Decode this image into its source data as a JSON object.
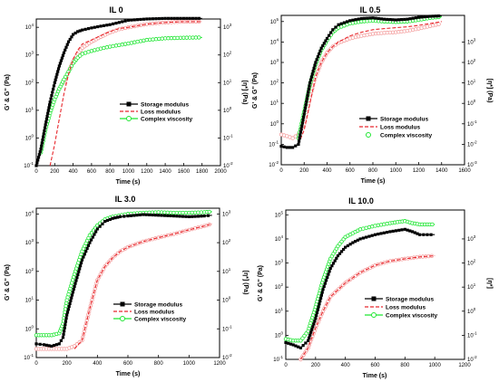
{
  "chart_data": [
    {
      "type": "line",
      "title": "IL 0",
      "xlabel": "Time (s)",
      "ylabel": "G' & G'' (Pa)",
      "y2label": "[η*] (Pa)",
      "xlim": [
        0,
        2000
      ],
      "xticks": [
        0,
        200,
        400,
        600,
        800,
        1000,
        1200,
        1400,
        1600,
        1800,
        2000
      ],
      "yscale": "log",
      "ylim_exp": [
        -1,
        4.3
      ],
      "ytick_exps": [
        -1,
        0,
        1,
        2,
        3,
        4
      ],
      "y2lim_exp": [
        -2,
        3.3
      ],
      "y2tick_exps": [
        -2,
        -1,
        0,
        1,
        2,
        3
      ],
      "legend_position": "center-right",
      "legend": [
        "Storage modulus",
        "Loss modulus",
        "Complex viscosity"
      ],
      "series": [
        {
          "name": "Storage modulus",
          "color": "#000000",
          "marker": "square-filled",
          "style": "solid",
          "x": [
            0,
            50,
            100,
            150,
            200,
            250,
            300,
            350,
            400,
            450,
            500,
            600,
            700,
            800,
            900,
            1000,
            1200,
            1400,
            1600,
            1800
          ],
          "y": [
            0.1,
            0.4,
            3,
            20,
            100,
            400,
            1200,
            3000,
            5500,
            7000,
            8000,
            9500,
            11000,
            12500,
            15000,
            18000,
            20000,
            21000,
            21000,
            21000
          ]
        },
        {
          "name": "Loss modulus",
          "color": "#e8282d",
          "marker": "none",
          "style": "dashed",
          "x": [
            150,
            200,
            250,
            300,
            350,
            400,
            450,
            500,
            600,
            700,
            800,
            900,
            1000,
            1200,
            1400,
            1600,
            1800
          ],
          "y": [
            0.1,
            0.6,
            5,
            40,
            200,
            700,
            1500,
            2500,
            3500,
            5000,
            7000,
            9000,
            10000,
            13000,
            15000,
            16000,
            16000
          ]
        },
        {
          "name": "Complex viscosity",
          "color": "#1ee632",
          "marker": "circle-open",
          "style": "solid",
          "x": [
            50,
            100,
            150,
            200,
            250,
            300,
            350,
            400,
            450,
            500,
            600,
            700,
            800,
            1000,
            1200,
            1400,
            1600,
            1800
          ],
          "y": [
            0.3,
            2,
            8,
            25,
            60,
            130,
            250,
            500,
            800,
            1100,
            1400,
            1700,
            2000,
            2600,
            3500,
            4000,
            4200,
            4300
          ]
        },
        {
          "name": "",
          "color": "#f4a0a0",
          "marker": "circle-open",
          "style": "dotted",
          "x": [
            300,
            350,
            400,
            450,
            500,
            600,
            700,
            800,
            900,
            1000,
            1200,
            1400,
            1600,
            1800
          ],
          "y": [
            100,
            250,
            600,
            1100,
            1800,
            3000,
            4500,
            6500,
            8500,
            10000,
            13000,
            15000,
            16000,
            16000
          ]
        }
      ]
    },
    {
      "type": "line",
      "title": "IL 0.5",
      "xlabel": "Time (s)",
      "ylabel": "G' & G'' (Pa)",
      "y2label": "[η*] (Pa)",
      "xlim": [
        0,
        1600
      ],
      "xticks": [
        0,
        200,
        400,
        600,
        800,
        1000,
        1200,
        1400,
        1600
      ],
      "yscale": "log",
      "ylim_exp": [
        -2,
        5.3
      ],
      "ytick_exps": [
        -2,
        -1,
        0,
        1,
        2,
        3,
        4,
        5
      ],
      "y2lim_exp": [
        -3,
        4.3
      ],
      "y2tick_exps": [
        -3,
        -2,
        -1,
        0,
        1,
        2,
        3
      ],
      "legend_position": "center-right",
      "legend": [
        "Storage modulus",
        "Loss modulus",
        "Complex viscosity"
      ],
      "series": [
        {
          "name": "Storage modulus",
          "color": "#000000",
          "marker": "square-filled",
          "style": "solid",
          "x": [
            0,
            50,
            100,
            150,
            200,
            250,
            300,
            350,
            400,
            450,
            500,
            600,
            700,
            800,
            900,
            1000,
            1100,
            1200,
            1300,
            1400
          ],
          "y": [
            0.08,
            0.07,
            0.07,
            0.1,
            3,
            100,
            1000,
            5000,
            15000,
            40000,
            70000,
            110000,
            140000,
            150000,
            130000,
            120000,
            130000,
            160000,
            180000,
            190000
          ]
        },
        {
          "name": "Loss modulus",
          "color": "#e8282d",
          "marker": "none",
          "style": "dashed",
          "x": [
            150,
            200,
            250,
            300,
            350,
            400,
            450,
            500,
            600,
            700,
            800,
            900,
            1000,
            1100,
            1200,
            1300,
            1400
          ],
          "y": [
            0.1,
            0.5,
            10,
            200,
            1000,
            3000,
            6000,
            10000,
            20000,
            30000,
            40000,
            45000,
            50000,
            55000,
            65000,
            80000,
            100000
          ]
        },
        {
          "name": "Complex viscosity",
          "color": "#1ee632",
          "marker": "circle-open",
          "style": "solid",
          "x": [
            150,
            200,
            250,
            300,
            350,
            400,
            450,
            500,
            600,
            700,
            800,
            900,
            1000,
            1100,
            1200,
            1300,
            1400
          ],
          "y": [
            0.2,
            4,
            80,
            800,
            4000,
            12000,
            30000,
            50000,
            80000,
            100000,
            110000,
            100000,
            95000,
            100000,
            120000,
            150000,
            170000
          ]
        },
        {
          "name": "",
          "color": "#f4a0a0",
          "marker": "circle-open",
          "style": "dotted",
          "x": [
            0,
            50,
            100,
            150,
            200,
            250,
            300,
            350,
            400,
            450,
            500,
            600,
            700,
            800,
            900,
            1000,
            1100,
            1200,
            1300,
            1400
          ],
          "y": [
            0.3,
            0.25,
            0.2,
            0.3,
            1,
            20,
            200,
            1000,
            3000,
            6000,
            9000,
            15000,
            20000,
            25000,
            28000,
            30000,
            35000,
            45000,
            60000,
            80000
          ]
        }
      ]
    },
    {
      "type": "line",
      "title": "IL 3.0",
      "xlabel": "Time (s)",
      "ylabel": "G' & G'' (Pa)",
      "y2label": "[η*] (Pa)",
      "xlim": [
        0,
        1200
      ],
      "xticks": [
        0,
        200,
        400,
        600,
        800,
        1000,
        1200
      ],
      "yscale": "log",
      "ylim_exp": [
        -1,
        4.2
      ],
      "ytick_exps": [
        -1,
        0,
        1,
        2,
        3,
        4
      ],
      "y2lim_exp": [
        -2,
        3.2
      ],
      "y2tick_exps": [
        -2,
        -1,
        0,
        1,
        2,
        3
      ],
      "legend_position": "center-right",
      "legend": [
        "Storage modulus",
        "Loss modulus",
        "Complex viscosity"
      ],
      "series": [
        {
          "name": "Storage modulus",
          "color": "#000000",
          "marker": "square-filled",
          "style": "solid",
          "x": [
            0,
            50,
            100,
            150,
            175,
            200,
            250,
            300,
            350,
            400,
            450,
            500,
            550,
            600,
            700,
            800,
            900,
            1000,
            1100,
            1150
          ],
          "y": [
            0.3,
            0.28,
            0.25,
            0.3,
            0.5,
            3,
            30,
            250,
            1000,
            3000,
            5500,
            7000,
            8000,
            8500,
            9500,
            9000,
            8500,
            8000,
            8500,
            9000
          ]
        },
        {
          "name": "Loss modulus",
          "color": "#e8282d",
          "marker": "none",
          "style": "dashed",
          "x": [
            250,
            300,
            350,
            400,
            450,
            500,
            550,
            600,
            700,
            800,
            900,
            1000,
            1100,
            1150
          ],
          "y": [
            0.2,
            0.4,
            5,
            50,
            150,
            300,
            500,
            700,
            1100,
            1500,
            2000,
            2800,
            3800,
            4500
          ]
        },
        {
          "name": "Complex viscosity",
          "color": "#1ee632",
          "marker": "circle-open",
          "style": "solid",
          "x": [
            0,
            50,
            100,
            150,
            175,
            200,
            250,
            300,
            350,
            400,
            450,
            500,
            600,
            700,
            800,
            900,
            1000,
            1100,
            1150
          ],
          "y": [
            0.6,
            0.6,
            0.6,
            0.7,
            1.5,
            10,
            80,
            500,
            1800,
            4000,
            6500,
            8000,
            10000,
            11000,
            11500,
            11000,
            11000,
            11500,
            12000
          ]
        },
        {
          "name": "",
          "color": "#f4a0a0",
          "marker": "circle-open",
          "style": "dotted",
          "x": [
            0,
            50,
            100,
            150,
            200,
            250,
            300,
            350,
            400,
            450,
            500,
            550,
            600,
            700,
            800,
            900,
            1000,
            1100,
            1150
          ],
          "y": [
            0.2,
            0.2,
            0.2,
            0.2,
            0.2,
            0.25,
            0.4,
            5,
            50,
            150,
            300,
            500,
            700,
            1100,
            1500,
            2000,
            2800,
            3800,
            4500
          ]
        }
      ]
    },
    {
      "type": "line",
      "title": "IL 10.0",
      "xlabel": "Time (s)",
      "ylabel": "G' & G'' (Pa)",
      "y2label": "[η*]",
      "xlim": [
        0,
        1200
      ],
      "xticks": [
        0,
        200,
        400,
        600,
        800,
        1000,
        1200
      ],
      "yscale": "log",
      "ylim_exp": [
        -1,
        5.2
      ],
      "ytick_exps": [
        -1,
        0,
        1,
        2,
        3,
        4,
        5
      ],
      "y2lim_exp": [
        -2,
        4.2
      ],
      "y2tick_exps": [
        -2,
        -1,
        0,
        1,
        2,
        3
      ],
      "legend_position": "center-right",
      "legend": [
        "Storage modulus",
        "Loss modulus",
        "Complex viscosity"
      ],
      "series": [
        {
          "name": "Storage modulus",
          "color": "#000000",
          "marker": "square-filled",
          "style": "solid",
          "x": [
            0,
            50,
            100,
            150,
            200,
            250,
            300,
            350,
            400,
            450,
            500,
            600,
            700,
            800,
            850,
            900,
            950,
            1000
          ],
          "y": [
            0.5,
            0.4,
            0.3,
            0.6,
            5,
            80,
            600,
            2000,
            4500,
            7000,
            10000,
            15000,
            20000,
            25000,
            20000,
            15000,
            15000,
            15000
          ]
        },
        {
          "name": "Loss modulus",
          "color": "#e8282d",
          "marker": "none",
          "style": "dashed",
          "x": [
            100,
            150,
            200,
            250,
            300,
            400,
            500,
            600,
            700,
            800,
            900,
            1000
          ],
          "y": [
            0.1,
            0.3,
            2,
            10,
            40,
            150,
            400,
            800,
            1200,
            1500,
            1800,
            2000
          ]
        },
        {
          "name": "Complex viscosity",
          "color": "#1ee632",
          "marker": "circle-open",
          "style": "solid",
          "x": [
            0,
            50,
            100,
            150,
            200,
            250,
            300,
            350,
            400,
            500,
            600,
            700,
            750,
            800,
            850,
            900,
            950,
            1000
          ],
          "y": [
            0.7,
            0.6,
            0.6,
            1.5,
            15,
            200,
            1500,
            5000,
            12000,
            25000,
            35000,
            45000,
            50000,
            55000,
            45000,
            40000,
            40000,
            40000
          ]
        },
        {
          "name": "",
          "color": "#f4a0a0",
          "marker": "circle-open",
          "style": "dotted",
          "x": [
            100,
            150,
            200,
            250,
            300,
            400,
            500,
            600,
            700,
            800,
            900,
            1000
          ],
          "y": [
            0.1,
            0.3,
            2,
            10,
            40,
            150,
            400,
            800,
            1200,
            1500,
            1800,
            2000
          ]
        }
      ]
    }
  ]
}
